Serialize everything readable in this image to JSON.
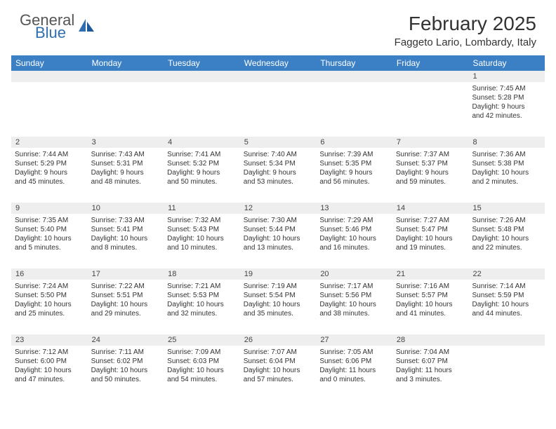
{
  "logo": {
    "line1": "General",
    "line2": "Blue"
  },
  "title": "February 2025",
  "location": "Faggeto Lario, Lombardy, Italy",
  "weekday_header_bg": "#3b7fc4",
  "weekday_header_fg": "#ffffff",
  "daynum_bg": "#eeeeee",
  "text_color": "#333333",
  "weekdays": [
    "Sunday",
    "Monday",
    "Tuesday",
    "Wednesday",
    "Thursday",
    "Friday",
    "Saturday"
  ],
  "weeks": [
    [
      null,
      null,
      null,
      null,
      null,
      null,
      {
        "d": "1",
        "sr": "Sunrise: 7:45 AM",
        "ss": "Sunset: 5:28 PM",
        "dl1": "Daylight: 9 hours",
        "dl2": "and 42 minutes."
      }
    ],
    [
      {
        "d": "2",
        "sr": "Sunrise: 7:44 AM",
        "ss": "Sunset: 5:29 PM",
        "dl1": "Daylight: 9 hours",
        "dl2": "and 45 minutes."
      },
      {
        "d": "3",
        "sr": "Sunrise: 7:43 AM",
        "ss": "Sunset: 5:31 PM",
        "dl1": "Daylight: 9 hours",
        "dl2": "and 48 minutes."
      },
      {
        "d": "4",
        "sr": "Sunrise: 7:41 AM",
        "ss": "Sunset: 5:32 PM",
        "dl1": "Daylight: 9 hours",
        "dl2": "and 50 minutes."
      },
      {
        "d": "5",
        "sr": "Sunrise: 7:40 AM",
        "ss": "Sunset: 5:34 PM",
        "dl1": "Daylight: 9 hours",
        "dl2": "and 53 minutes."
      },
      {
        "d": "6",
        "sr": "Sunrise: 7:39 AM",
        "ss": "Sunset: 5:35 PM",
        "dl1": "Daylight: 9 hours",
        "dl2": "and 56 minutes."
      },
      {
        "d": "7",
        "sr": "Sunrise: 7:37 AM",
        "ss": "Sunset: 5:37 PM",
        "dl1": "Daylight: 9 hours",
        "dl2": "and 59 minutes."
      },
      {
        "d": "8",
        "sr": "Sunrise: 7:36 AM",
        "ss": "Sunset: 5:38 PM",
        "dl1": "Daylight: 10 hours",
        "dl2": "and 2 minutes."
      }
    ],
    [
      {
        "d": "9",
        "sr": "Sunrise: 7:35 AM",
        "ss": "Sunset: 5:40 PM",
        "dl1": "Daylight: 10 hours",
        "dl2": "and 5 minutes."
      },
      {
        "d": "10",
        "sr": "Sunrise: 7:33 AM",
        "ss": "Sunset: 5:41 PM",
        "dl1": "Daylight: 10 hours",
        "dl2": "and 8 minutes."
      },
      {
        "d": "11",
        "sr": "Sunrise: 7:32 AM",
        "ss": "Sunset: 5:43 PM",
        "dl1": "Daylight: 10 hours",
        "dl2": "and 10 minutes."
      },
      {
        "d": "12",
        "sr": "Sunrise: 7:30 AM",
        "ss": "Sunset: 5:44 PM",
        "dl1": "Daylight: 10 hours",
        "dl2": "and 13 minutes."
      },
      {
        "d": "13",
        "sr": "Sunrise: 7:29 AM",
        "ss": "Sunset: 5:46 PM",
        "dl1": "Daylight: 10 hours",
        "dl2": "and 16 minutes."
      },
      {
        "d": "14",
        "sr": "Sunrise: 7:27 AM",
        "ss": "Sunset: 5:47 PM",
        "dl1": "Daylight: 10 hours",
        "dl2": "and 19 minutes."
      },
      {
        "d": "15",
        "sr": "Sunrise: 7:26 AM",
        "ss": "Sunset: 5:48 PM",
        "dl1": "Daylight: 10 hours",
        "dl2": "and 22 minutes."
      }
    ],
    [
      {
        "d": "16",
        "sr": "Sunrise: 7:24 AM",
        "ss": "Sunset: 5:50 PM",
        "dl1": "Daylight: 10 hours",
        "dl2": "and 25 minutes."
      },
      {
        "d": "17",
        "sr": "Sunrise: 7:22 AM",
        "ss": "Sunset: 5:51 PM",
        "dl1": "Daylight: 10 hours",
        "dl2": "and 29 minutes."
      },
      {
        "d": "18",
        "sr": "Sunrise: 7:21 AM",
        "ss": "Sunset: 5:53 PM",
        "dl1": "Daylight: 10 hours",
        "dl2": "and 32 minutes."
      },
      {
        "d": "19",
        "sr": "Sunrise: 7:19 AM",
        "ss": "Sunset: 5:54 PM",
        "dl1": "Daylight: 10 hours",
        "dl2": "and 35 minutes."
      },
      {
        "d": "20",
        "sr": "Sunrise: 7:17 AM",
        "ss": "Sunset: 5:56 PM",
        "dl1": "Daylight: 10 hours",
        "dl2": "and 38 minutes."
      },
      {
        "d": "21",
        "sr": "Sunrise: 7:16 AM",
        "ss": "Sunset: 5:57 PM",
        "dl1": "Daylight: 10 hours",
        "dl2": "and 41 minutes."
      },
      {
        "d": "22",
        "sr": "Sunrise: 7:14 AM",
        "ss": "Sunset: 5:59 PM",
        "dl1": "Daylight: 10 hours",
        "dl2": "and 44 minutes."
      }
    ],
    [
      {
        "d": "23",
        "sr": "Sunrise: 7:12 AM",
        "ss": "Sunset: 6:00 PM",
        "dl1": "Daylight: 10 hours",
        "dl2": "and 47 minutes."
      },
      {
        "d": "24",
        "sr": "Sunrise: 7:11 AM",
        "ss": "Sunset: 6:02 PM",
        "dl1": "Daylight: 10 hours",
        "dl2": "and 50 minutes."
      },
      {
        "d": "25",
        "sr": "Sunrise: 7:09 AM",
        "ss": "Sunset: 6:03 PM",
        "dl1": "Daylight: 10 hours",
        "dl2": "and 54 minutes."
      },
      {
        "d": "26",
        "sr": "Sunrise: 7:07 AM",
        "ss": "Sunset: 6:04 PM",
        "dl1": "Daylight: 10 hours",
        "dl2": "and 57 minutes."
      },
      {
        "d": "27",
        "sr": "Sunrise: 7:05 AM",
        "ss": "Sunset: 6:06 PM",
        "dl1": "Daylight: 11 hours",
        "dl2": "and 0 minutes."
      },
      {
        "d": "28",
        "sr": "Sunrise: 7:04 AM",
        "ss": "Sunset: 6:07 PM",
        "dl1": "Daylight: 11 hours",
        "dl2": "and 3 minutes."
      },
      null
    ]
  ]
}
